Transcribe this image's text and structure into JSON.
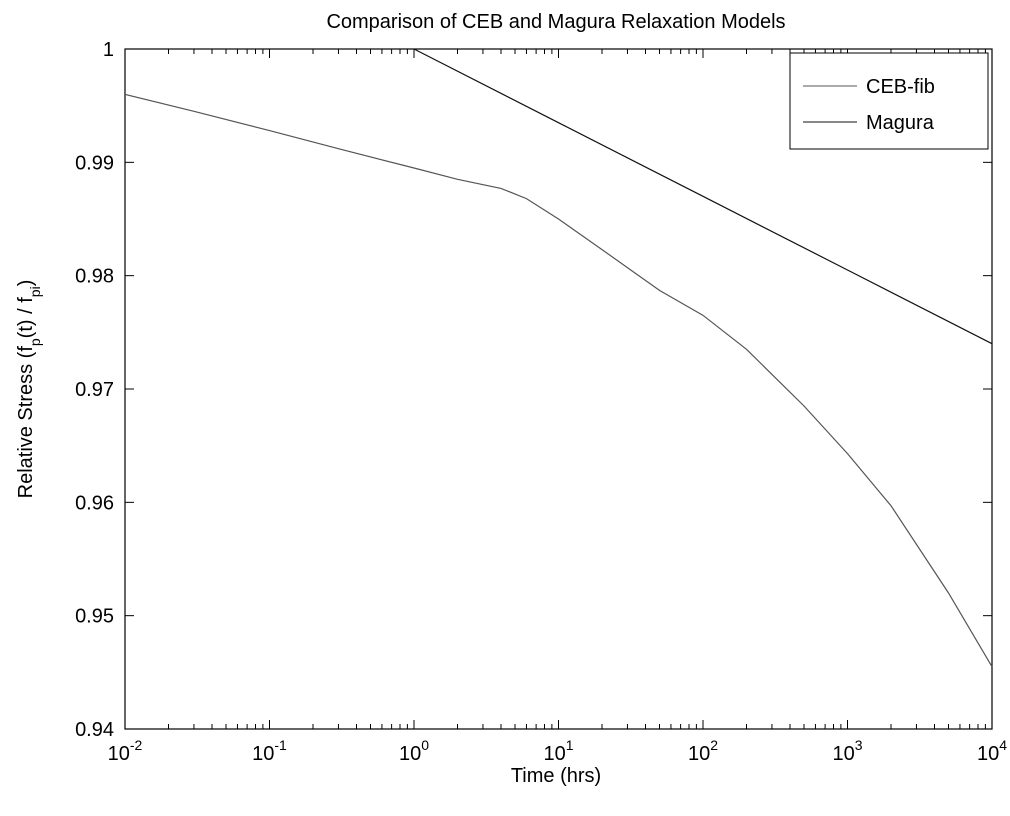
{
  "chart_data": {
    "type": "line",
    "title": "Comparison of CEB and Magura Relaxation Models",
    "xlabel": "Time (hrs)",
    "ylabel": {
      "prefix": "Relative Stress (f",
      "sub1": "p",
      "middle": "(t) / f",
      "sub2": "pi",
      "suffix": ")"
    },
    "x_scale": "log",
    "xlim": [
      0.01,
      10000
    ],
    "ylim": [
      0.94,
      1.0
    ],
    "x_ticks": [
      {
        "base": "10",
        "exp": "-2",
        "value": 0.01
      },
      {
        "base": "10",
        "exp": "-1",
        "value": 0.1
      },
      {
        "base": "10",
        "exp": "0",
        "value": 1
      },
      {
        "base": "10",
        "exp": "1",
        "value": 10
      },
      {
        "base": "10",
        "exp": "2",
        "value": 100
      },
      {
        "base": "10",
        "exp": "3",
        "value": 1000
      },
      {
        "base": "10",
        "exp": "4",
        "value": 10000
      }
    ],
    "y_ticks": [
      {
        "label": "0.94",
        "value": 0.94
      },
      {
        "label": "0.95",
        "value": 0.95
      },
      {
        "label": "0.96",
        "value": 0.96
      },
      {
        "label": "0.97",
        "value": 0.97
      },
      {
        "label": "0.98",
        "value": 0.98
      },
      {
        "label": "0.99",
        "value": 0.99
      },
      {
        "label": "1",
        "value": 1.0
      }
    ],
    "grid": false,
    "legend_position": "top-right",
    "series": [
      {
        "name": "CEB-fib",
        "color": "#555555",
        "x": [
          0.01,
          0.03,
          0.1,
          0.3,
          1,
          2,
          4,
          6,
          10,
          20,
          50,
          100,
          200,
          500,
          1000,
          2000,
          5000,
          10000
        ],
        "y": [
          0.996,
          0.9945,
          0.9928,
          0.9912,
          0.9895,
          0.9885,
          0.9877,
          0.9868,
          0.985,
          0.9823,
          0.9787,
          0.9765,
          0.9735,
          0.9685,
          0.9643,
          0.9597,
          0.952,
          0.9455
        ]
      },
      {
        "name": "Magura",
        "color": "#111111",
        "x": [
          1,
          10,
          100,
          1000,
          10000
        ],
        "y": [
          1.0,
          0.9935,
          0.987,
          0.9805,
          0.974
        ]
      }
    ]
  }
}
